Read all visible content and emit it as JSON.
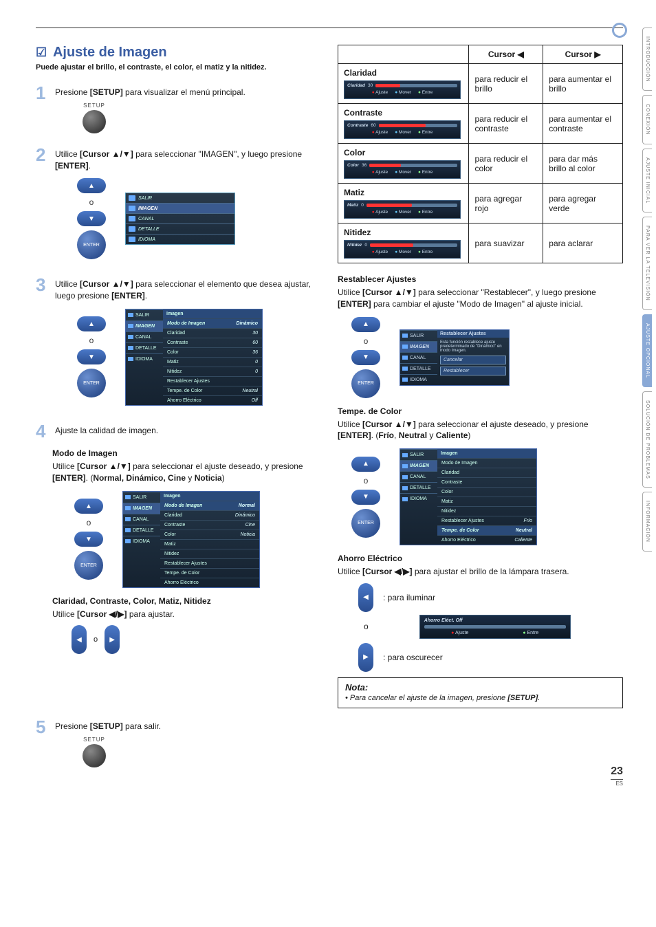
{
  "title": "Ajuste de Imagen",
  "check_glyph": "☑",
  "subtitle": "Puede ajustar el brillo, el contraste, el color, el matiz y la nitidez.",
  "steps": {
    "s1": {
      "num": "1",
      "text_pre": "Presione ",
      "btn": "[SETUP]",
      "text_post": " para visualizar el menú principal.",
      "setup_label": "SETUP"
    },
    "s2": {
      "num": "2",
      "text_pre": "Utilice ",
      "btn": "[Cursor ▲/▼]",
      "text_mid": " para seleccionar \"IMAGEN\", y luego presione ",
      "btn2": "[ENTER]",
      "text_post": "."
    },
    "s3": {
      "num": "3",
      "text_pre": "Utilice ",
      "btn": "[Cursor ▲/▼]",
      "text_mid": " para seleccionar el elemento que desea ajustar, luego presione ",
      "btn2": "[ENTER]",
      "text_post": "."
    },
    "s4": {
      "num": "4",
      "text": "Ajuste la calidad de imagen."
    },
    "s5": {
      "num": "5",
      "text_pre": "Presione ",
      "btn": "[SETUP]",
      "text_post": " para salir.",
      "setup_label": "SETUP"
    }
  },
  "dpad": {
    "up": "▲",
    "down": "▼",
    "left": "◀",
    "right": "▶",
    "o": "o",
    "enter": "ENTER"
  },
  "menu_salir": {
    "items": [
      "SALIR",
      "IMAGEN",
      "CANAL",
      "DETALLE",
      "IDIOMA"
    ],
    "selected_index": 1
  },
  "imagen_menu": {
    "header": "Imagen",
    "side": [
      "SALIR",
      "IMAGEN",
      "CANAL",
      "DETALLE",
      "IDIOMA"
    ],
    "rows": [
      {
        "l": "Modo de Imagen",
        "v": "Dinámico",
        "sel": true
      },
      {
        "l": "Claridad",
        "v": "30"
      },
      {
        "l": "Contraste",
        "v": "60"
      },
      {
        "l": "Color",
        "v": "36"
      },
      {
        "l": "Matiz",
        "v": "0"
      },
      {
        "l": "Nitidez",
        "v": "0"
      },
      {
        "l": "Restablecer Ajustes",
        "v": ""
      },
      {
        "l": "Tempe. de Color",
        "v": "Neutral"
      },
      {
        "l": "Ahorro Eléctrico",
        "v": "Off"
      }
    ]
  },
  "modo": {
    "heading": "Modo de Imagen",
    "text_pre": "Utilice ",
    "btn": "[Cursor ▲/▼]",
    "text_mid": " para seleccionar el ajuste deseado, y presione ",
    "btn2": "[ENTER]",
    "text_post": ". (",
    "opts": "Normal, Dinámico, Cine",
    "text_post2": " y ",
    "opt_last": "Noticia",
    "text_post3": ")",
    "menu_rows": [
      {
        "l": "Modo de Imagen",
        "v": "Normal",
        "sel": true
      },
      {
        "l": "Claridad",
        "v": "Dinámico",
        "vcol": true
      },
      {
        "l": "Contraste",
        "v": "Cine",
        "vcol": true
      },
      {
        "l": "Color",
        "v": "Noticia",
        "vcol": true
      },
      {
        "l": "Matiz",
        "v": ""
      },
      {
        "l": "Nitidez",
        "v": ""
      },
      {
        "l": "Restablecer Ajustes",
        "v": ""
      },
      {
        "l": "Tempe. de Color",
        "v": ""
      },
      {
        "l": "Ahorro Eléctrico",
        "v": ""
      }
    ]
  },
  "ccmn": {
    "heading": "Claridad, Contraste, Color, Matiz, Nitidez",
    "text_pre": "Utilice ",
    "btn": "[Cursor ◀/▶]",
    "text_post": " para ajustar."
  },
  "adj_table": {
    "h1": "Cursor ◀",
    "h2": "Cursor ▶",
    "rows": [
      {
        "name": "Claridad",
        "val": "30",
        "fill": 30,
        "l": "para reducir el brillo",
        "r": "para aumentar el brillo"
      },
      {
        "name": "Contraste",
        "val": "60",
        "fill": 60,
        "l": "para reducir el contraste",
        "r": "para aumentar el contraste"
      },
      {
        "name": "Color",
        "val": "36",
        "fill": 36,
        "l": "para reducir el color",
        "r": "para dar más brillo al color"
      },
      {
        "name": "Matiz",
        "val": "0",
        "fill": 50,
        "l": "para agregar rojo",
        "r": "para agregar verde"
      },
      {
        "name": "Nitidez",
        "val": "0",
        "fill": 50,
        "l": "para suavizar",
        "r": "para aclarar"
      }
    ],
    "slider_labels": {
      "ajuste": "Ajuste",
      "mover": "Mover",
      "entre": "Entre"
    }
  },
  "restablecer": {
    "heading": "Restablecer Ajustes",
    "text_pre": "Utilice ",
    "btn": "[Cursor ▲/▼]",
    "text_mid": " para seleccionar \"Restablecer\", y luego presione ",
    "btn2": "[ENTER]",
    "text_post": " para cambiar el ajuste \"Modo de Imagen\" al ajuste inicial.",
    "box": {
      "hdr": "Restablecer Ajustes",
      "msg": "Esta función restablece ajuste predeterminado de \"Dinámico\" en modo Imagen.",
      "btn1": "Cancelar",
      "btn2": "Restablecer"
    }
  },
  "tempe": {
    "heading": "Tempe. de Color",
    "text_pre": "Utilice ",
    "btn": "[Cursor ▲/▼]",
    "text_mid": " para seleccionar el ajuste deseado, y presione ",
    "btn2": "[ENTER]",
    "text_post": ". (",
    "o1": "Frío",
    "sep": ", ",
    "o2": "Neutral",
    "sep2": " y ",
    "o3": "Caliente",
    "close": ")",
    "menu_rows": [
      {
        "l": "Modo de Imagen",
        "v": ""
      },
      {
        "l": "Claridad",
        "v": ""
      },
      {
        "l": "Contraste",
        "v": ""
      },
      {
        "l": "Color",
        "v": ""
      },
      {
        "l": "Matiz",
        "v": ""
      },
      {
        "l": "Nitidez",
        "v": ""
      },
      {
        "l": "Restablecer Ajustes",
        "v": "Frío",
        "vcol": true
      },
      {
        "l": "Tempe. de Color",
        "v": "Neutral",
        "sel": true,
        "vcol": true
      },
      {
        "l": "Ahorro Eléctrico",
        "v": "Caliente",
        "vcol": true
      }
    ]
  },
  "ahorro": {
    "heading": "Ahorro Eléctrico",
    "text_pre": "Utilice ",
    "btn": "[Cursor ◀/▶]",
    "text_post": " para ajustar el brillo de la lámpara trasera.",
    "light": ": para iluminar",
    "dark": ": para oscurecer",
    "slider_name": "Ahorro Eléct.   Off",
    "ajuste": "Ajuste",
    "entre": "Entre"
  },
  "nota": {
    "heading": "Nota:",
    "line": "Para cancelar el ajuste de la imagen, presione ",
    "btn": "[SETUP]",
    "dot": "."
  },
  "sidetabs": [
    "INTRODUCCIÓN",
    "CONEXIÓN",
    "AJUSTE INICIAL",
    "PARA VER LA TELEVISIÓN",
    "AJUSTE OPCIONAL",
    "SOLUCIÓN DE PROBLEMAS",
    "INFORMACIÓN"
  ],
  "sidetab_active": 4,
  "page_number": "23",
  "es": "ES"
}
